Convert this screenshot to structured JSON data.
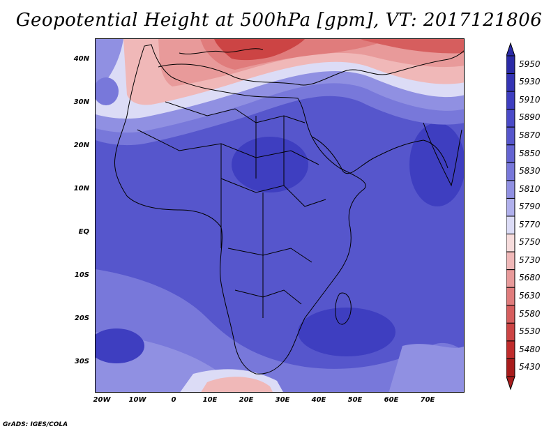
{
  "title": "Geopotential Height at 500hPa [gpm], VT: 2017121806",
  "credit": "GrADS: IGES/COLA",
  "map": {
    "lat_labels": [
      "40N",
      "30N",
      "20N",
      "10N",
      "EQ",
      "10S",
      "20S",
      "30S"
    ],
    "lon_labels": [
      "20W",
      "10W",
      "0",
      "10E",
      "20E",
      "30E",
      "40E",
      "50E",
      "60E",
      "70E"
    ]
  },
  "colorbar": {
    "levels": [
      "5950",
      "5930",
      "5910",
      "5890",
      "5870",
      "5850",
      "5830",
      "5810",
      "5790",
      "5770",
      "5750",
      "5730",
      "5680",
      "5630",
      "5580",
      "5530",
      "5480",
      "5430"
    ],
    "colors": [
      "#2a2aa6",
      "#3434b4",
      "#3e3ec0",
      "#4a4ac8",
      "#5656cc",
      "#6464d2",
      "#7878da",
      "#9090e2",
      "#b0b0ec",
      "#dcdcf6",
      "#f6dcdc",
      "#f0b8b8",
      "#e89a9a",
      "#e07c7c",
      "#d65e5e",
      "#cc4444",
      "#c02c2c",
      "#a81c1c"
    ]
  },
  "field_colors": {
    "deep_blue": "#3b3bb8",
    "mid_blue": "#5555c8",
    "light_blue": "#7a7ad8",
    "pale_blue": "#b4b4ec",
    "white": "#f4f4fb",
    "pale_red": "#f2c4c4",
    "light_red": "#e8a0a0",
    "red": "#d86a6a",
    "dark_red": "#b83030"
  }
}
